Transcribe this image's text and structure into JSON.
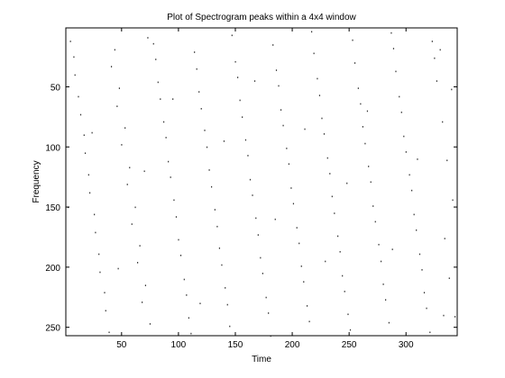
{
  "colors": {
    "background": "#ffffff",
    "axes": "#000000",
    "points": "#333333"
  },
  "chart_data": {
    "type": "scatter",
    "title": "Plot of Spectrogram peaks within a 4x4 window",
    "xlabel": "Time",
    "ylabel": "Frequency",
    "xlim": [
      1,
      345
    ],
    "ylim": [
      1,
      257
    ],
    "y_reversed": true,
    "grid": false,
    "x_ticks": [
      50,
      100,
      150,
      200,
      250,
      300
    ],
    "y_ticks": [
      50,
      100,
      150,
      200,
      250
    ],
    "x_tick_labels": [
      "50",
      "100",
      "150",
      "200",
      "250",
      "300"
    ],
    "y_tick_labels": [
      "50",
      "100",
      "150",
      "200",
      "250"
    ],
    "series": [
      {
        "marker": "dot",
        "points": [
          [
            5,
            12
          ],
          [
            9,
            40
          ],
          [
            14,
            73
          ],
          [
            18,
            105
          ],
          [
            22,
            138
          ],
          [
            27,
            171
          ],
          [
            31,
            204
          ],
          [
            36,
            236
          ],
          [
            8,
            25
          ],
          [
            12,
            58
          ],
          [
            17,
            90
          ],
          [
            21,
            123
          ],
          [
            26,
            156
          ],
          [
            30,
            189
          ],
          [
            35,
            221
          ],
          [
            39,
            254
          ],
          [
            44,
            19
          ],
          [
            48,
            51
          ],
          [
            53,
            84
          ],
          [
            57,
            117
          ],
          [
            62,
            150
          ],
          [
            66,
            182
          ],
          [
            71,
            215
          ],
          [
            75,
            247
          ],
          [
            41,
            33
          ],
          [
            46,
            66
          ],
          [
            50,
            98
          ],
          [
            55,
            131
          ],
          [
            59,
            164
          ],
          [
            64,
            196
          ],
          [
            68,
            229
          ],
          [
            73,
            9
          ],
          [
            80,
            27
          ],
          [
            84,
            60
          ],
          [
            89,
            92
          ],
          [
            93,
            125
          ],
          [
            98,
            158
          ],
          [
            102,
            190
          ],
          [
            107,
            223
          ],
          [
            111,
            255
          ],
          [
            78,
            14
          ],
          [
            82,
            46
          ],
          [
            87,
            79
          ],
          [
            91,
            112
          ],
          [
            96,
            144
          ],
          [
            100,
            177
          ],
          [
            105,
            210
          ],
          [
            109,
            242
          ],
          [
            116,
            35
          ],
          [
            120,
            68
          ],
          [
            125,
            100
          ],
          [
            129,
            133
          ],
          [
            134,
            166
          ],
          [
            138,
            198
          ],
          [
            143,
            231
          ],
          [
            147,
            7
          ],
          [
            114,
            21
          ],
          [
            118,
            54
          ],
          [
            123,
            86
          ],
          [
            127,
            119
          ],
          [
            132,
            152
          ],
          [
            136,
            184
          ],
          [
            141,
            217
          ],
          [
            145,
            249
          ],
          [
            152,
            42
          ],
          [
            156,
            75
          ],
          [
            161,
            107
          ],
          [
            165,
            140
          ],
          [
            170,
            173
          ],
          [
            174,
            205
          ],
          [
            179,
            238
          ],
          [
            183,
            15
          ],
          [
            150,
            29
          ],
          [
            154,
            61
          ],
          [
            159,
            94
          ],
          [
            163,
            127
          ],
          [
            168,
            159
          ],
          [
            172,
            192
          ],
          [
            177,
            225
          ],
          [
            181,
            257
          ],
          [
            188,
            49
          ],
          [
            192,
            82
          ],
          [
            197,
            114
          ],
          [
            201,
            147
          ],
          [
            206,
            180
          ],
          [
            210,
            212
          ],
          [
            215,
            245
          ],
          [
            219,
            22
          ],
          [
            186,
            36
          ],
          [
            190,
            69
          ],
          [
            195,
            101
          ],
          [
            199,
            134
          ],
          [
            204,
            167
          ],
          [
            208,
            199
          ],
          [
            213,
            232
          ],
          [
            217,
            4
          ],
          [
            224,
            57
          ],
          [
            228,
            89
          ],
          [
            233,
            122
          ],
          [
            237,
            155
          ],
          [
            242,
            187
          ],
          [
            246,
            220
          ],
          [
            251,
            252
          ],
          [
            255,
            30
          ],
          [
            222,
            43
          ],
          [
            226,
            76
          ],
          [
            231,
            109
          ],
          [
            235,
            141
          ],
          [
            240,
            174
          ],
          [
            244,
            207
          ],
          [
            249,
            239
          ],
          [
            253,
            11
          ],
          [
            260,
            64
          ],
          [
            264,
            97
          ],
          [
            269,
            129
          ],
          [
            273,
            162
          ],
          [
            278,
            195
          ],
          [
            282,
            227
          ],
          [
            287,
            5
          ],
          [
            291,
            37
          ],
          [
            258,
            51
          ],
          [
            262,
            83
          ],
          [
            267,
            116
          ],
          [
            271,
            149
          ],
          [
            276,
            181
          ],
          [
            280,
            214
          ],
          [
            285,
            246
          ],
          [
            289,
            18
          ],
          [
            296,
            71
          ],
          [
            300,
            104
          ],
          [
            305,
            136
          ],
          [
            309,
            169
          ],
          [
            314,
            202
          ],
          [
            318,
            234
          ],
          [
            323,
            12
          ],
          [
            327,
            45
          ],
          [
            294,
            58
          ],
          [
            298,
            91
          ],
          [
            303,
            123
          ],
          [
            307,
            156
          ],
          [
            312,
            189
          ],
          [
            316,
            221
          ],
          [
            321,
            254
          ],
          [
            325,
            26
          ],
          [
            332,
            79
          ],
          [
            336,
            111
          ],
          [
            341,
            144
          ],
          [
            334,
            176
          ],
          [
            338,
            209
          ],
          [
            343,
            241
          ],
          [
            330,
            19
          ],
          [
            340,
            52
          ],
          [
            3,
            150
          ],
          [
            24,
            88
          ],
          [
            47,
            201
          ],
          [
            70,
            120
          ],
          [
            95,
            60
          ],
          [
            119,
            230
          ],
          [
            140,
            95
          ],
          [
            167,
            45
          ],
          [
            185,
            160
          ],
          [
            211,
            85
          ],
          [
            229,
            195
          ],
          [
            248,
            130
          ],
          [
            266,
            70
          ],
          [
            288,
            185
          ],
          [
            310,
            110
          ],
          [
            333,
            240
          ]
        ]
      }
    ]
  }
}
